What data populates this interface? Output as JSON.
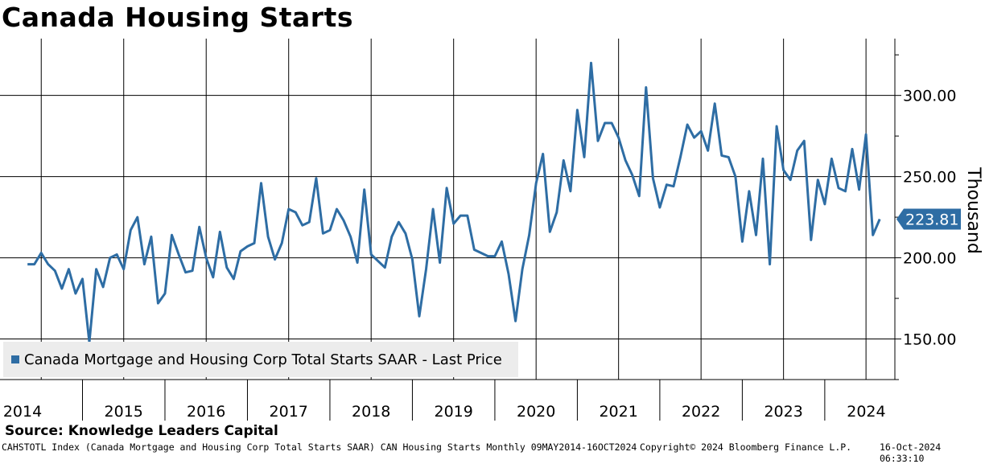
{
  "title": "Canada Housing Starts",
  "legend_label": "Canada Mortgage and Housing Corp Total Starts SAAR - Last Price",
  "source": "Source: Knowledge Leaders Capital",
  "footer": {
    "left": "CAHSTOTL Index (Canada Mortgage and Housing Corp Total Starts SAAR) CAN Housing Starts  Monthly 09MAY2014-16OCT2024",
    "center": "Copyright© 2024 Bloomberg Finance L.P.",
    "right": "16-Oct-2024 06:33:10"
  },
  "colors": {
    "line": "#2e6da4",
    "grid": "#000000",
    "legend_bg": "#ececec"
  },
  "chart_data": {
    "type": "line",
    "title": "Canada Housing Starts",
    "ylabel": "Thousand",
    "ylim": [
      125,
      335
    ],
    "yticks": [
      150,
      200,
      250,
      300
    ],
    "ytick_labels": [
      "150.00",
      "200.00",
      "250.00",
      "300.00"
    ],
    "xlim": [
      2014.0,
      2024.85
    ],
    "year_ticks": [
      2014,
      2015,
      2016,
      2017,
      2018,
      2019,
      2020,
      2021,
      2022,
      2023,
      2024
    ],
    "x_labels": [
      "2014",
      "2015",
      "2016",
      "2017",
      "2018",
      "2019",
      "2020",
      "2021",
      "2022",
      "2023",
      "2024"
    ],
    "last_value": 223.81,
    "last_value_label": "223.81",
    "series": [
      {
        "name": "Canada Mortgage and Housing Corp Total Starts SAAR - Last Price",
        "start": "2014-05",
        "frequency": "monthly",
        "values": [
          196,
          196,
          203,
          196,
          192,
          181,
          193,
          178,
          187,
          148,
          193,
          182,
          200,
          202,
          193,
          217,
          225,
          196,
          213,
          172,
          178,
          214,
          202,
          191,
          192,
          219,
          200,
          188,
          216,
          194,
          187,
          204,
          207,
          209,
          246,
          213,
          199,
          209,
          230,
          228,
          220,
          222,
          249,
          215,
          217,
          230,
          223,
          213,
          197,
          242,
          202,
          198,
          194,
          213,
          222,
          215,
          199,
          164,
          193,
          230,
          197,
          243,
          221,
          226,
          226,
          205,
          203,
          201,
          201,
          210,
          190,
          161,
          193,
          214,
          246,
          264,
          216,
          228,
          260,
          241,
          291,
          262,
          320,
          272,
          283,
          283,
          274,
          260,
          251,
          238,
          305,
          249,
          231,
          245,
          244,
          262,
          282,
          274,
          278,
          266,
          295,
          263,
          262,
          250,
          210,
          241,
          214,
          261,
          196,
          281,
          254,
          248,
          266,
          272,
          211,
          248,
          233,
          261,
          243,
          241,
          267,
          242,
          276,
          214,
          223.81
        ]
      }
    ]
  }
}
